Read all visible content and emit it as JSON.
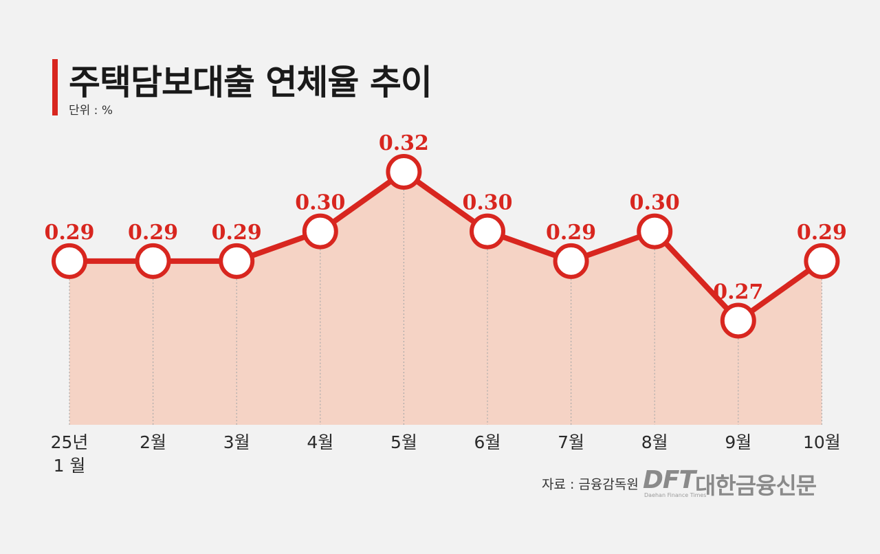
{
  "title": "주택담보대출 연체율 추이",
  "unit_label": "단위 : %",
  "source": "자료 : 금융감독원",
  "logo": {
    "mark": "DFT",
    "name": "대한금융신문",
    "subtitle": "Daehan Finance Times"
  },
  "colors": {
    "accent": "#d8261f",
    "area_fill": "#f5d3c5",
    "background": "#f2f2f2"
  },
  "chart_data": {
    "type": "line",
    "title": "주택담보대출 연체율 추이",
    "ylabel": "단위 : %",
    "categories": [
      [
        "25년",
        "1 월"
      ],
      [
        "2월"
      ],
      [
        "3월"
      ],
      [
        "4월"
      ],
      [
        "5월"
      ],
      [
        "6월"
      ],
      [
        "7월"
      ],
      [
        "8월"
      ],
      [
        "9월"
      ],
      [
        "10월"
      ]
    ],
    "values": [
      0.29,
      0.29,
      0.29,
      0.3,
      0.32,
      0.3,
      0.29,
      0.3,
      0.27,
      0.29
    ],
    "data_labels": [
      "0.29",
      "0.29",
      "0.29",
      "0.30",
      "0.32",
      "0.30",
      "0.29",
      "0.30",
      "0.27",
      "0.29"
    ],
    "ylim": [
      0.235,
      0.32
    ],
    "grid": false,
    "legend": "none"
  }
}
